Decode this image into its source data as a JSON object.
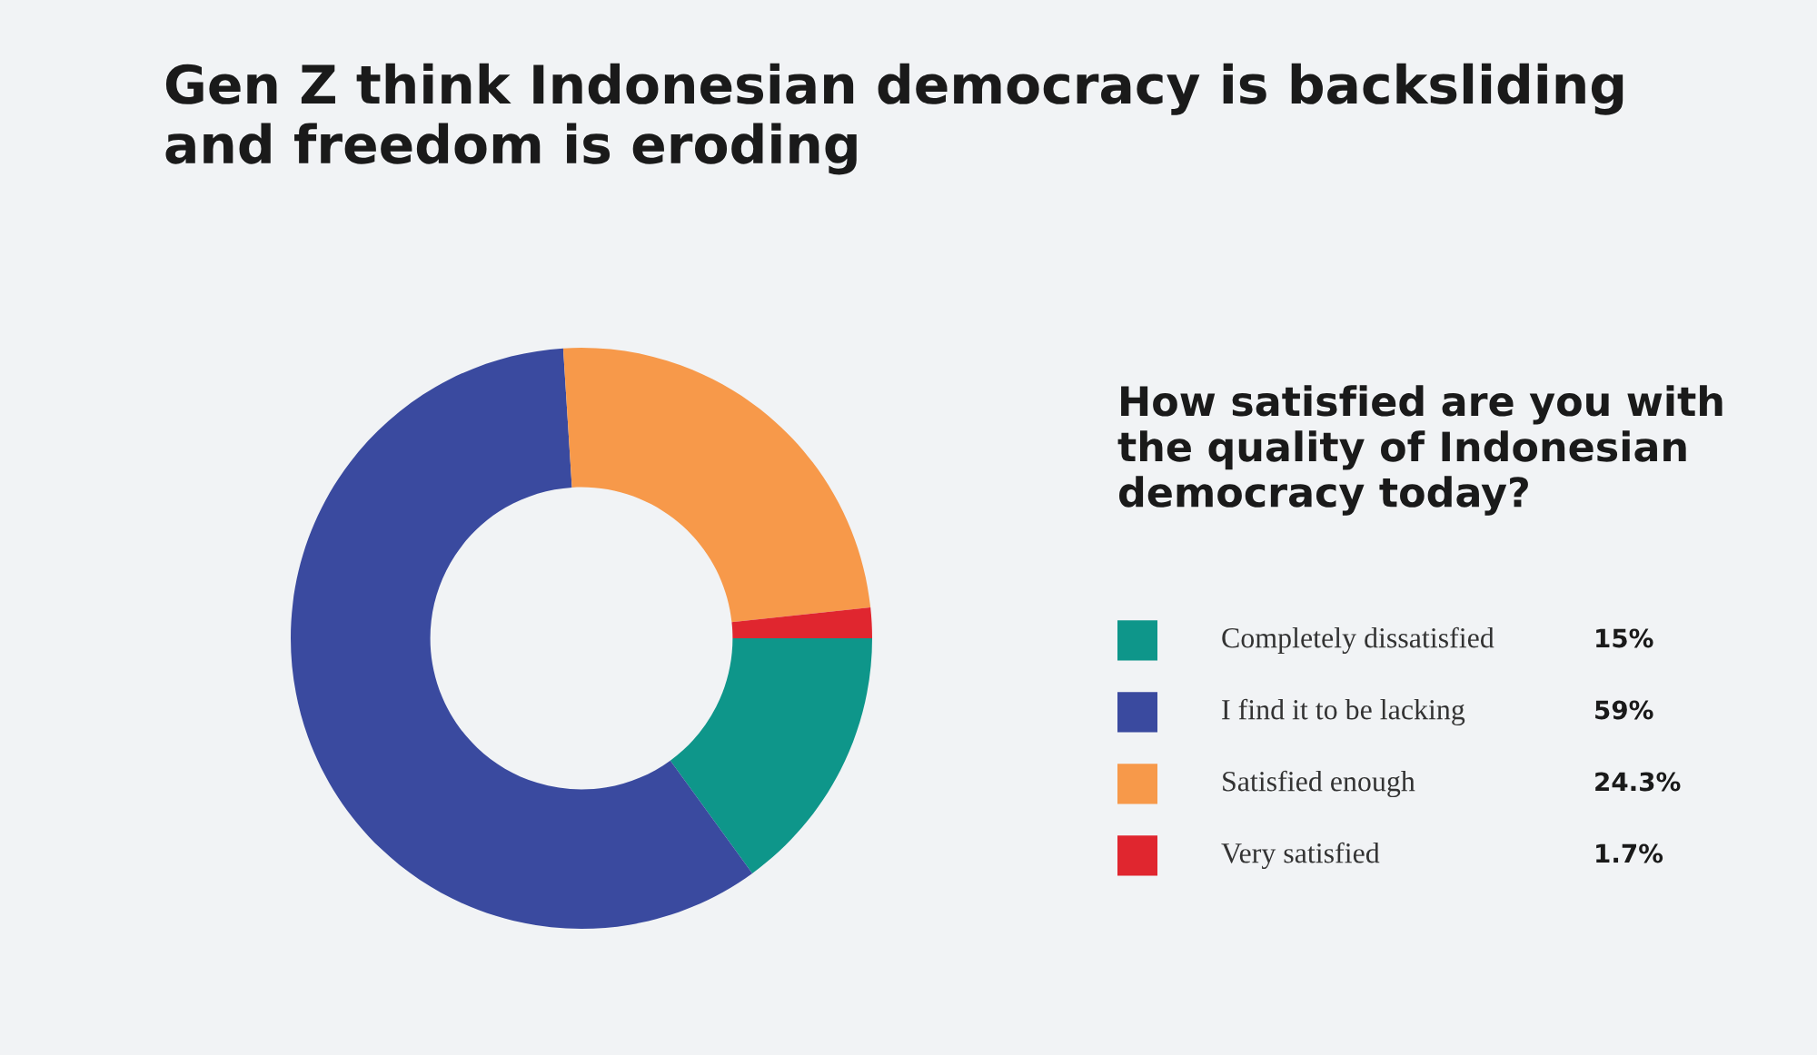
{
  "chart_data": {
    "type": "donut",
    "title": "Gen Z think Indonesian democracy is backsliding\nand freedom is eroding",
    "legend_title": "How satisfied are you with\nthe quality of Indonesian\ndemocracy today?",
    "categories": [
      "Completely dissatisfied",
      "I find it to be lacking",
      "Satisfied enough",
      "Very satisfied"
    ],
    "values": [
      15,
      59,
      24.3,
      1.7
    ],
    "value_labels": [
      "15%",
      "59%",
      "24.3%",
      "1.7%"
    ],
    "colors": [
      "#0e968a",
      "#3a4a9f",
      "#f7994a",
      "#e0262f"
    ],
    "legend": "right"
  }
}
